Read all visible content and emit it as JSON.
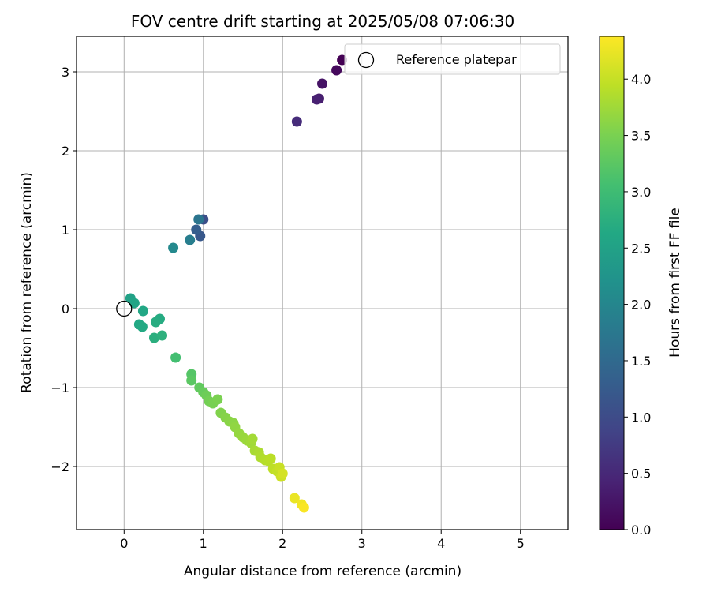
{
  "chart_data": {
    "type": "scatter",
    "title": "FOV centre drift starting at 2025/05/08 07:06:30",
    "xlabel": "Angular distance from reference (arcmin)",
    "ylabel": "Rotation from reference (arcmin)",
    "xlim": [
      -0.6,
      5.6
    ],
    "ylim": [
      -2.8,
      3.45
    ],
    "xticks": [
      0,
      1,
      2,
      3,
      4,
      5
    ],
    "yticks": [
      -2,
      -1,
      0,
      1,
      2,
      3
    ],
    "xtick_labels": [
      "0",
      "1",
      "2",
      "3",
      "4",
      "5"
    ],
    "ytick_labels": [
      "−2",
      "−1",
      "0",
      "1",
      "2",
      "3"
    ],
    "grid": true,
    "legend": {
      "position": "top-right",
      "entries": [
        "Reference platepar"
      ]
    },
    "reference_point": {
      "x": 0,
      "y": 0
    },
    "colorbar": {
      "label": "Hours from first FF file",
      "colormap": "viridis",
      "range": [
        0,
        4.38
      ],
      "ticks": [
        0.0,
        0.5,
        1.0,
        1.5,
        2.0,
        2.5,
        3.0,
        3.5,
        4.0
      ],
      "tick_labels": [
        "0.0",
        "0.5",
        "1.0",
        "1.5",
        "2.0",
        "2.5",
        "3.0",
        "3.5",
        "4.0"
      ]
    },
    "points": [
      {
        "x": 2.75,
        "y": 3.15,
        "t": 0.0
      },
      {
        "x": 2.68,
        "y": 3.02,
        "t": 0.1
      },
      {
        "x": 2.5,
        "y": 2.85,
        "t": 0.22
      },
      {
        "x": 2.46,
        "y": 2.66,
        "t": 0.35
      },
      {
        "x": 2.43,
        "y": 2.65,
        "t": 0.4
      },
      {
        "x": 2.18,
        "y": 2.37,
        "t": 0.55
      },
      {
        "x": 1.0,
        "y": 1.13,
        "t": 1.05
      },
      {
        "x": 0.96,
        "y": 0.92,
        "t": 1.2
      },
      {
        "x": 0.91,
        "y": 1.0,
        "t": 1.3
      },
      {
        "x": 0.94,
        "y": 1.13,
        "t": 1.7
      },
      {
        "x": 0.83,
        "y": 0.87,
        "t": 1.85
      },
      {
        "x": 0.62,
        "y": 0.77,
        "t": 2.05
      },
      {
        "x": 0.08,
        "y": 0.13,
        "t": 2.5
      },
      {
        "x": 0.13,
        "y": 0.07,
        "t": 2.55
      },
      {
        "x": 0.24,
        "y": -0.03,
        "t": 2.6
      },
      {
        "x": 0.19,
        "y": -0.2,
        "t": 2.62
      },
      {
        "x": 0.23,
        "y": -0.23,
        "t": 2.65
      },
      {
        "x": 0.45,
        "y": -0.13,
        "t": 2.68
      },
      {
        "x": 0.4,
        "y": -0.17,
        "t": 2.7
      },
      {
        "x": 0.38,
        "y": -0.37,
        "t": 2.75
      },
      {
        "x": 0.48,
        "y": -0.34,
        "t": 2.78
      },
      {
        "x": 0.65,
        "y": -0.62,
        "t": 3.05
      },
      {
        "x": 0.85,
        "y": -0.83,
        "t": 3.2
      },
      {
        "x": 0.85,
        "y": -0.91,
        "t": 3.25
      },
      {
        "x": 0.95,
        "y": -1.0,
        "t": 3.3
      },
      {
        "x": 1.0,
        "y": -1.06,
        "t": 3.35
      },
      {
        "x": 1.04,
        "y": -1.1,
        "t": 3.4
      },
      {
        "x": 1.07,
        "y": -1.17,
        "t": 3.45
      },
      {
        "x": 1.12,
        "y": -1.2,
        "t": 3.48
      },
      {
        "x": 1.18,
        "y": -1.15,
        "t": 3.5
      },
      {
        "x": 1.22,
        "y": -1.32,
        "t": 3.55
      },
      {
        "x": 1.28,
        "y": -1.38,
        "t": 3.58
      },
      {
        "x": 1.33,
        "y": -1.43,
        "t": 3.6
      },
      {
        "x": 1.38,
        "y": -1.45,
        "t": 3.62
      },
      {
        "x": 1.4,
        "y": -1.5,
        "t": 3.65
      },
      {
        "x": 1.45,
        "y": -1.58,
        "t": 3.68
      },
      {
        "x": 1.5,
        "y": -1.63,
        "t": 3.7
      },
      {
        "x": 1.55,
        "y": -1.67,
        "t": 3.72
      },
      {
        "x": 1.6,
        "y": -1.7,
        "t": 3.75
      },
      {
        "x": 1.62,
        "y": -1.65,
        "t": 3.77
      },
      {
        "x": 1.65,
        "y": -1.8,
        "t": 3.8
      },
      {
        "x": 1.7,
        "y": -1.82,
        "t": 3.83
      },
      {
        "x": 1.72,
        "y": -1.88,
        "t": 3.85
      },
      {
        "x": 1.78,
        "y": -1.92,
        "t": 3.88
      },
      {
        "x": 1.82,
        "y": -1.93,
        "t": 3.9
      },
      {
        "x": 1.85,
        "y": -1.9,
        "t": 3.92
      },
      {
        "x": 1.88,
        "y": -2.03,
        "t": 3.95
      },
      {
        "x": 1.93,
        "y": -2.06,
        "t": 3.98
      },
      {
        "x": 1.96,
        "y": -2.01,
        "t": 4.02
      },
      {
        "x": 1.98,
        "y": -2.13,
        "t": 4.05
      },
      {
        "x": 2.0,
        "y": -2.09,
        "t": 4.1
      },
      {
        "x": 2.15,
        "y": -2.4,
        "t": 4.25
      },
      {
        "x": 2.24,
        "y": -2.48,
        "t": 4.3
      },
      {
        "x": 2.27,
        "y": -2.52,
        "t": 4.35
      }
    ]
  }
}
